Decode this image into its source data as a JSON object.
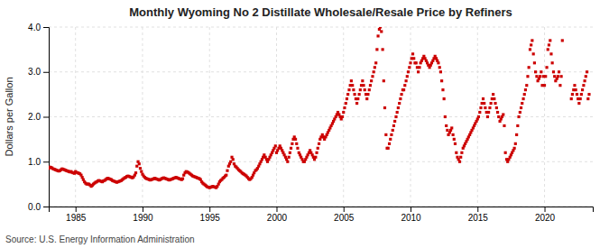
{
  "chart_data": {
    "type": "scatter",
    "title": "Monthly Wyoming No 2 Distillate Wholesale/Resale Price by Refiners",
    "ylabel": "Dollars per Gallon",
    "source": "Source: U.S. Energy Information Administration",
    "color": "#cc0000",
    "marker": "square",
    "grid": true,
    "xlim": [
      1983.0,
      2023.6
    ],
    "ylim": [
      0.0,
      4.0
    ],
    "xticks": [
      1985,
      1990,
      1995,
      2000,
      2005,
      2010,
      2015,
      2020
    ],
    "yticks": [
      {
        "value": 0.0,
        "label": "0.0"
      },
      {
        "value": 1.0,
        "label": "1.0"
      },
      {
        "value": 2.0,
        "label": "2.0"
      },
      {
        "value": 3.0,
        "label": "3.0"
      },
      {
        "value": 4.0,
        "label": "4.0"
      }
    ],
    "x": [
      1983.0,
      1983.08,
      1983.17,
      1983.25,
      1983.33,
      1983.42,
      1983.5,
      1983.58,
      1983.67,
      1983.75,
      1983.83,
      1983.92,
      1984.0,
      1984.08,
      1984.17,
      1984.25,
      1984.33,
      1984.42,
      1984.5,
      1984.58,
      1984.67,
      1984.75,
      1984.83,
      1984.92,
      1985.0,
      1985.08,
      1985.17,
      1985.25,
      1985.33,
      1985.42,
      1985.5,
      1985.58,
      1985.67,
      1985.75,
      1985.83,
      1985.92,
      1986.0,
      1986.08,
      1986.17,
      1986.25,
      1986.33,
      1986.42,
      1986.5,
      1986.58,
      1986.67,
      1986.75,
      1986.83,
      1986.92,
      1987.0,
      1987.08,
      1987.17,
      1987.25,
      1987.33,
      1987.42,
      1987.5,
      1987.58,
      1987.67,
      1987.75,
      1987.83,
      1987.92,
      1988.0,
      1988.08,
      1988.17,
      1988.25,
      1988.33,
      1988.42,
      1988.5,
      1988.58,
      1988.67,
      1988.75,
      1988.83,
      1988.92,
      1989.0,
      1989.08,
      1989.17,
      1989.25,
      1989.33,
      1989.42,
      1989.5,
      1989.58,
      1989.67,
      1989.75,
      1989.83,
      1989.92,
      1990.0,
      1990.08,
      1990.17,
      1990.25,
      1990.33,
      1990.42,
      1990.5,
      1990.58,
      1990.67,
      1990.75,
      1990.83,
      1990.92,
      1991.0,
      1991.08,
      1991.17,
      1991.25,
      1991.33,
      1991.42,
      1991.5,
      1991.58,
      1991.67,
      1991.75,
      1991.83,
      1991.92,
      1992.0,
      1992.08,
      1992.17,
      1992.25,
      1992.33,
      1992.42,
      1992.5,
      1992.58,
      1992.67,
      1992.75,
      1992.83,
      1992.92,
      1993.0,
      1993.08,
      1993.17,
      1993.25,
      1993.33,
      1993.42,
      1993.5,
      1993.58,
      1993.67,
      1993.75,
      1993.83,
      1993.92,
      1994.0,
      1994.08,
      1994.17,
      1994.25,
      1994.33,
      1994.42,
      1994.5,
      1994.58,
      1994.67,
      1994.75,
      1994.83,
      1994.92,
      1995.0,
      1995.08,
      1995.17,
      1995.25,
      1995.33,
      1995.42,
      1995.5,
      1995.58,
      1995.67,
      1995.75,
      1995.83,
      1995.92,
      1996.0,
      1996.08,
      1996.17,
      1996.25,
      1996.33,
      1996.42,
      1996.5,
      1996.58,
      1996.67,
      1996.75,
      1996.83,
      1996.92,
      1997.0,
      1997.08,
      1997.17,
      1997.25,
      1997.33,
      1997.42,
      1997.5,
      1997.58,
      1997.67,
      1997.75,
      1997.83,
      1997.92,
      1998.0,
      1998.08,
      1998.17,
      1998.25,
      1998.33,
      1998.42,
      1998.5,
      1998.58,
      1998.67,
      1998.75,
      1998.83,
      1998.92,
      1999.0,
      1999.08,
      1999.17,
      1999.25,
      1999.33,
      1999.42,
      1999.5,
      1999.58,
      1999.67,
      1999.75,
      1999.83,
      1999.92,
      2000.0,
      2000.08,
      2000.17,
      2000.25,
      2000.33,
      2000.42,
      2000.5,
      2000.58,
      2000.67,
      2000.75,
      2000.83,
      2000.92,
      2001.0,
      2001.08,
      2001.17,
      2001.25,
      2001.33,
      2001.42,
      2001.5,
      2001.58,
      2001.67,
      2001.75,
      2001.83,
      2001.92,
      2002.0,
      2002.08,
      2002.17,
      2002.25,
      2002.33,
      2002.42,
      2002.5,
      2002.58,
      2002.67,
      2002.75,
      2002.83,
      2002.92,
      2003.0,
      2003.08,
      2003.17,
      2003.25,
      2003.33,
      2003.42,
      2003.5,
      2003.58,
      2003.67,
      2003.75,
      2003.83,
      2003.92,
      2004.0,
      2004.08,
      2004.17,
      2004.25,
      2004.33,
      2004.42,
      2004.5,
      2004.58,
      2004.67,
      2004.75,
      2004.83,
      2004.92,
      2005.0,
      2005.08,
      2005.17,
      2005.25,
      2005.33,
      2005.42,
      2005.5,
      2005.58,
      2005.67,
      2005.75,
      2005.83,
      2005.92,
      2006.0,
      2006.08,
      2006.17,
      2006.25,
      2006.33,
      2006.42,
      2006.5,
      2006.58,
      2006.67,
      2006.75,
      2006.83,
      2006.92,
      2007.0,
      2007.08,
      2007.17,
      2007.25,
      2007.33,
      2007.42,
      2007.5,
      2007.58,
      2007.67,
      2007.75,
      2007.83,
      2007.92,
      2008.0,
      2008.08,
      2008.17,
      2008.25,
      2008.33,
      2008.42,
      2008.5,
      2008.58,
      2008.67,
      2008.75,
      2008.83,
      2008.92,
      2009.0,
      2009.08,
      2009.17,
      2009.25,
      2009.33,
      2009.42,
      2009.5,
      2009.58,
      2009.67,
      2009.75,
      2009.83,
      2009.92,
      2010.0,
      2010.08,
      2010.17,
      2010.25,
      2010.33,
      2010.42,
      2010.5,
      2010.58,
      2010.67,
      2010.75,
      2010.83,
      2010.92,
      2011.0,
      2011.08,
      2011.17,
      2011.25,
      2011.33,
      2011.42,
      2011.5,
      2011.58,
      2011.67,
      2011.75,
      2011.83,
      2011.92,
      2012.0,
      2012.08,
      2012.17,
      2012.25,
      2012.33,
      2012.42,
      2012.5,
      2012.58,
      2012.67,
      2012.75,
      2012.83,
      2012.92,
      2013.0,
      2013.08,
      2013.17,
      2013.25,
      2013.33,
      2013.42,
      2013.5,
      2013.58,
      2013.67,
      2013.75,
      2013.83,
      2013.92,
      2014.0,
      2014.08,
      2014.17,
      2014.25,
      2014.33,
      2014.42,
      2014.5,
      2014.58,
      2014.67,
      2014.75,
      2014.83,
      2014.92,
      2015.0,
      2015.08,
      2015.17,
      2015.25,
      2015.33,
      2015.42,
      2015.5,
      2015.58,
      2015.67,
      2015.75,
      2015.83,
      2015.92,
      2016.0,
      2016.08,
      2016.17,
      2016.25,
      2016.33,
      2016.42,
      2016.5,
      2016.58,
      2016.67,
      2016.75,
      2016.83,
      2016.92,
      2017.0,
      2017.08,
      2017.17,
      2017.25,
      2017.33,
      2017.42,
      2017.5,
      2017.58,
      2017.67,
      2017.75,
      2017.83,
      2017.92,
      2018.0,
      2018.08,
      2018.17,
      2018.25,
      2018.33,
      2018.42,
      2018.5,
      2018.58,
      2018.67,
      2018.75,
      2018.83,
      2018.92,
      2019.0,
      2019.08,
      2019.17,
      2019.25,
      2019.33,
      2019.42,
      2019.5,
      2019.58,
      2019.67,
      2019.75,
      2019.83,
      2019.92,
      2020.0,
      2020.08,
      2020.17,
      2020.25,
      2020.33,
      2020.42,
      2020.5,
      2020.58,
      2020.67,
      2020.75,
      2020.83,
      2020.92,
      2021.0,
      2021.08,
      2021.17,
      2021.25,
      2021.33,
      2022.0,
      2022.08,
      2022.17,
      2022.25,
      2022.33,
      2022.42,
      2022.5,
      2022.58,
      2022.67,
      2022.75,
      2022.83,
      2022.92,
      2023.0,
      2023.08,
      2023.17,
      2023.25,
      2023.33
    ],
    "values": [
      0.85,
      0.88,
      0.87,
      0.86,
      0.84,
      0.83,
      0.82,
      0.81,
      0.8,
      0.79,
      0.8,
      0.82,
      0.84,
      0.83,
      0.82,
      0.81,
      0.8,
      0.79,
      0.78,
      0.77,
      0.78,
      0.76,
      0.75,
      0.74,
      0.78,
      0.76,
      0.75,
      0.74,
      0.73,
      0.7,
      0.65,
      0.6,
      0.55,
      0.52,
      0.5,
      0.5,
      0.5,
      0.48,
      0.45,
      0.47,
      0.5,
      0.52,
      0.54,
      0.55,
      0.57,
      0.58,
      0.57,
      0.56,
      0.55,
      0.57,
      0.58,
      0.6,
      0.62,
      0.63,
      0.62,
      0.61,
      0.6,
      0.58,
      0.57,
      0.56,
      0.55,
      0.54,
      0.55,
      0.56,
      0.57,
      0.58,
      0.6,
      0.62,
      0.64,
      0.65,
      0.67,
      0.68,
      0.67,
      0.66,
      0.65,
      0.64,
      0.66,
      0.7,
      0.75,
      0.9,
      1.0,
      0.95,
      0.85,
      0.78,
      0.72,
      0.68,
      0.65,
      0.63,
      0.62,
      0.61,
      0.6,
      0.59,
      0.6,
      0.61,
      0.62,
      0.63,
      0.62,
      0.61,
      0.6,
      0.59,
      0.6,
      0.62,
      0.63,
      0.64,
      0.63,
      0.62,
      0.61,
      0.6,
      0.59,
      0.6,
      0.61,
      0.62,
      0.63,
      0.64,
      0.65,
      0.64,
      0.63,
      0.62,
      0.61,
      0.6,
      0.62,
      0.7,
      0.75,
      0.78,
      0.77,
      0.76,
      0.74,
      0.72,
      0.7,
      0.68,
      0.67,
      0.66,
      0.65,
      0.64,
      0.63,
      0.62,
      0.6,
      0.55,
      0.52,
      0.5,
      0.48,
      0.46,
      0.44,
      0.43,
      0.42,
      0.43,
      0.44,
      0.45,
      0.44,
      0.43,
      0.42,
      0.45,
      0.5,
      0.55,
      0.58,
      0.6,
      0.63,
      0.65,
      0.68,
      0.7,
      0.8,
      0.9,
      0.95,
      1.0,
      1.1,
      1.05,
      0.95,
      0.9,
      0.88,
      0.85,
      0.82,
      0.8,
      0.78,
      0.75,
      0.73,
      0.72,
      0.7,
      0.68,
      0.65,
      0.62,
      0.6,
      0.62,
      0.65,
      0.7,
      0.75,
      0.8,
      0.82,
      0.85,
      0.9,
      0.95,
      1.0,
      1.05,
      1.1,
      1.15,
      1.1,
      1.05,
      1.0,
      1.05,
      1.1,
      1.15,
      1.2,
      1.25,
      1.3,
      1.35,
      1.2,
      1.25,
      1.3,
      1.35,
      1.3,
      1.25,
      1.2,
      1.15,
      1.1,
      1.05,
      1.0,
      1.1,
      1.2,
      1.3,
      1.4,
      1.5,
      1.55,
      1.5,
      1.4,
      1.3,
      1.2,
      1.15,
      1.1,
      1.05,
      1.0,
      1.0,
      1.05,
      1.1,
      1.15,
      1.2,
      1.25,
      1.2,
      1.15,
      1.1,
      1.05,
      1.1,
      1.2,
      1.3,
      1.4,
      1.5,
      1.55,
      1.6,
      1.55,
      1.5,
      1.55,
      1.6,
      1.65,
      1.7,
      1.75,
      1.8,
      1.85,
      1.9,
      1.95,
      2.0,
      2.05,
      2.1,
      2.05,
      2.0,
      1.95,
      2.0,
      2.1,
      2.2,
      2.3,
      2.4,
      2.5,
      2.6,
      2.7,
      2.8,
      2.7,
      2.6,
      2.5,
      2.4,
      2.3,
      2.4,
      2.5,
      2.6,
      2.7,
      2.8,
      2.7,
      2.6,
      2.5,
      2.4,
      2.5,
      2.6,
      2.7,
      2.8,
      2.9,
      3.0,
      3.1,
      3.2,
      3.5,
      3.8,
      3.95,
      4.0,
      3.9,
      3.5,
      2.8,
      2.2,
      1.6,
      1.3,
      1.3,
      1.4,
      1.5,
      1.6,
      1.7,
      1.8,
      1.9,
      2.0,
      2.1,
      2.2,
      2.3,
      2.4,
      2.5,
      2.6,
      2.6,
      2.7,
      2.8,
      2.9,
      3.0,
      3.1,
      3.2,
      3.3,
      3.4,
      3.3,
      3.2,
      3.2,
      3.1,
      3.0,
      3.1,
      3.2,
      3.25,
      3.3,
      3.35,
      3.3,
      3.25,
      3.2,
      3.15,
      3.1,
      3.15,
      3.2,
      3.25,
      3.3,
      3.35,
      3.3,
      3.25,
      3.2,
      3.1,
      3.0,
      2.8,
      2.6,
      2.4,
      2.0,
      1.8,
      1.7,
      1.6,
      1.65,
      1.7,
      1.75,
      1.6,
      1.5,
      1.4,
      1.2,
      1.1,
      1.05,
      1.0,
      1.1,
      1.2,
      1.3,
      1.35,
      1.4,
      1.45,
      1.5,
      1.55,
      1.6,
      1.65,
      1.7,
      1.75,
      1.8,
      1.85,
      1.9,
      1.95,
      2.0,
      2.1,
      2.2,
      2.3,
      2.4,
      2.3,
      2.2,
      2.1,
      2.0,
      2.1,
      2.2,
      2.3,
      2.4,
      2.5,
      2.4,
      2.3,
      2.2,
      2.1,
      2.0,
      1.9,
      1.95,
      2.0,
      2.05,
      1.8,
      1.2,
      1.05,
      1.0,
      1.05,
      1.1,
      1.15,
      1.2,
      1.25,
      1.3,
      1.4,
      1.6,
      1.8,
      2.0,
      2.1,
      2.2,
      2.3,
      2.4,
      2.5,
      2.6,
      2.7,
      2.9,
      3.1,
      3.5,
      3.6,
      3.7,
      3.4,
      3.2,
      3.0,
      2.9,
      2.8,
      2.85,
      2.9,
      3.0,
      2.7,
      2.9,
      2.7,
      2.9,
      3.1,
      3.5,
      3.6,
      3.7,
      3.4,
      3.2,
      3.0,
      2.9,
      2.8,
      2.85,
      2.9,
      3.0,
      2.7,
      2.9,
      3.7,
      2.4,
      2.5,
      2.6,
      2.7,
      2.6,
      2.5,
      2.4,
      2.3,
      2.4,
      2.5,
      2.6,
      2.7,
      2.8,
      2.9,
      3.0,
      2.4,
      2.5
    ]
  }
}
